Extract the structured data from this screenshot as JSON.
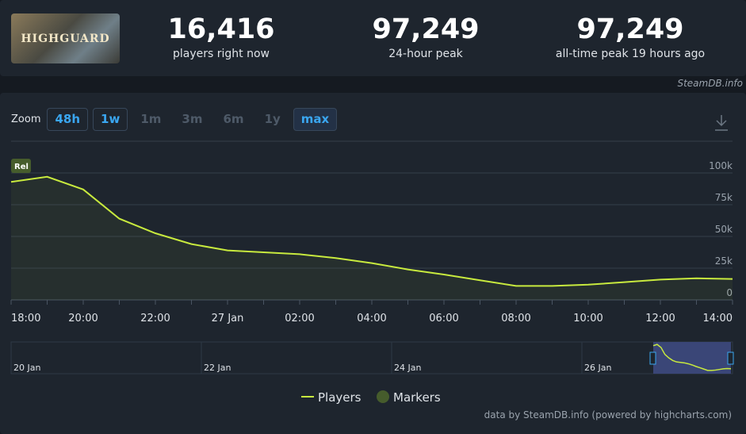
{
  "header": {
    "game_logo": "HIGHGUARD",
    "stats": [
      {
        "value": "16,416",
        "label": "players right now"
      },
      {
        "value": "97,249",
        "label": "24-hour peak"
      },
      {
        "value": "97,249",
        "label": "all-time peak 19 hours ago"
      }
    ],
    "site": "SteamDB.info"
  },
  "zoom": {
    "label": "Zoom",
    "buttons": [
      {
        "label": "48h",
        "state": "enabled"
      },
      {
        "label": "1w",
        "state": "enabled"
      },
      {
        "label": "1m",
        "state": "disabled"
      },
      {
        "label": "3m",
        "state": "disabled"
      },
      {
        "label": "6m",
        "state": "disabled"
      },
      {
        "label": "1y",
        "state": "disabled"
      },
      {
        "label": "max",
        "state": "selected"
      }
    ]
  },
  "chart_data": {
    "type": "line",
    "categories": [
      "18:00",
      null,
      "20:00",
      null,
      "22:00",
      null,
      "27 Jan",
      null,
      "02:00",
      null,
      "04:00",
      null,
      "06:00",
      null,
      "08:00",
      null,
      "10:00",
      null,
      "12:00",
      null,
      "14:00"
    ],
    "series": [
      {
        "name": "Players",
        "color": "#c8ea3e",
        "values": [
          93000,
          97000,
          87000,
          64000,
          52500,
          44000,
          39000,
          37500,
          36000,
          33000,
          29000,
          24000,
          20000,
          15500,
          11000,
          11000,
          12000,
          14000,
          16000,
          17000,
          16500
        ]
      },
      {
        "name": "Markers",
        "color": "#465c2c",
        "flags": [
          {
            "label": "Rel"
          }
        ]
      }
    ],
    "ylim": [
      0,
      100000
    ],
    "yticks": [
      0,
      {
        "value": 25000,
        "label": "25k"
      },
      {
        "value": 50000,
        "label": "50k"
      },
      {
        "value": 75000,
        "label": "75k"
      },
      {
        "value": 100000,
        "label": "100k"
      }
    ],
    "grid": true,
    "navigator_labels": [
      "20 Jan",
      "22 Jan",
      "24 Jan",
      "26 Jan"
    ],
    "credits": "data by SteamDB.info (powered by highcharts.com)"
  }
}
